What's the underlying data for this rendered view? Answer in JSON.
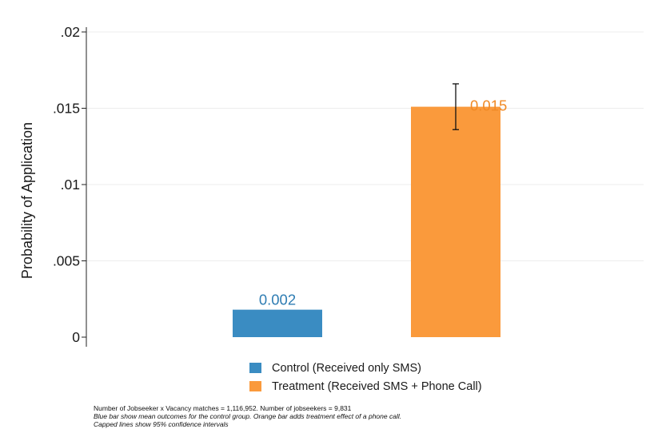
{
  "chart_data": {
    "type": "bar",
    "ylabel": "Probability of Application",
    "xlabel": "",
    "ylim": [
      0,
      0.02
    ],
    "yticks": [
      {
        "value": 0,
        "label": "0"
      },
      {
        "value": 0.005,
        "label": ".005"
      },
      {
        "value": 0.01,
        "label": ".01"
      },
      {
        "value": 0.015,
        "label": ".015"
      },
      {
        "value": 0.02,
        "label": ".02"
      }
    ],
    "grid": true,
    "legend_position": "bottom",
    "bars": [
      {
        "name": "Control (Received only SMS)",
        "value": 0.0018,
        "label": "0.002",
        "color": "#3a8cc2",
        "label_color": "#2f7db3"
      },
      {
        "name": "Treatment (Received SMS + Phone Call)",
        "value": 0.0151,
        "label": "0.015",
        "color": "#fa9a3c",
        "label_color": "#f08a26",
        "ci": [
          0.0136,
          0.0166
        ]
      }
    ]
  },
  "legend": {
    "items": [
      {
        "label": "Control (Received only SMS)",
        "color": "#3a8cc2"
      },
      {
        "label": "Treatment (Received SMS + Phone Call)",
        "color": "#fa9a3c"
      }
    ]
  },
  "notes": {
    "line1": "Number of Jobseeker x Vacancy matches = 1,116,952. Number of jobseekers = 9,831",
    "line2": "Blue bar show mean outcomes for the control group. Orange bar adds treatment effect of a phone call.",
    "line3": "Capped lines show 95% confidence intervals"
  }
}
